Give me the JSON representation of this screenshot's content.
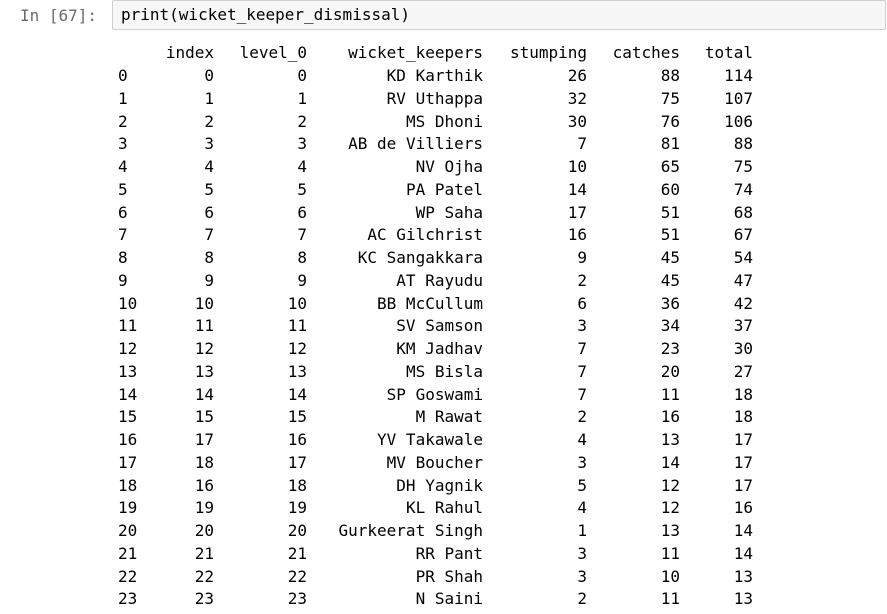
{
  "cell": {
    "prompt": "In [67]:",
    "code": "print(wicket_keeper_dismissal)"
  },
  "table": {
    "columns": [
      "index",
      "level_0",
      "wicket_keepers",
      "stumping",
      "catches",
      "total"
    ],
    "rows": [
      {
        "row_label": "0",
        "index": "0",
        "level_0": "0",
        "wicket_keepers": "KD Karthik",
        "stumping": "26",
        "catches": "88",
        "total": "114"
      },
      {
        "row_label": "1",
        "index": "1",
        "level_0": "1",
        "wicket_keepers": "RV Uthappa",
        "stumping": "32",
        "catches": "75",
        "total": "107"
      },
      {
        "row_label": "2",
        "index": "2",
        "level_0": "2",
        "wicket_keepers": "MS Dhoni",
        "stumping": "30",
        "catches": "76",
        "total": "106"
      },
      {
        "row_label": "3",
        "index": "3",
        "level_0": "3",
        "wicket_keepers": "AB de Villiers",
        "stumping": "7",
        "catches": "81",
        "total": "88"
      },
      {
        "row_label": "4",
        "index": "4",
        "level_0": "4",
        "wicket_keepers": "NV Ojha",
        "stumping": "10",
        "catches": "65",
        "total": "75"
      },
      {
        "row_label": "5",
        "index": "5",
        "level_0": "5",
        "wicket_keepers": "PA Patel",
        "stumping": "14",
        "catches": "60",
        "total": "74"
      },
      {
        "row_label": "6",
        "index": "6",
        "level_0": "6",
        "wicket_keepers": "WP Saha",
        "stumping": "17",
        "catches": "51",
        "total": "68"
      },
      {
        "row_label": "7",
        "index": "7",
        "level_0": "7",
        "wicket_keepers": "AC Gilchrist",
        "stumping": "16",
        "catches": "51",
        "total": "67"
      },
      {
        "row_label": "8",
        "index": "8",
        "level_0": "8",
        "wicket_keepers": "KC Sangakkara",
        "stumping": "9",
        "catches": "45",
        "total": "54"
      },
      {
        "row_label": "9",
        "index": "9",
        "level_0": "9",
        "wicket_keepers": "AT Rayudu",
        "stumping": "2",
        "catches": "45",
        "total": "47"
      },
      {
        "row_label": "10",
        "index": "10",
        "level_0": "10",
        "wicket_keepers": "BB McCullum",
        "stumping": "6",
        "catches": "36",
        "total": "42"
      },
      {
        "row_label": "11",
        "index": "11",
        "level_0": "11",
        "wicket_keepers": "SV Samson",
        "stumping": "3",
        "catches": "34",
        "total": "37"
      },
      {
        "row_label": "12",
        "index": "12",
        "level_0": "12",
        "wicket_keepers": "KM Jadhav",
        "stumping": "7",
        "catches": "23",
        "total": "30"
      },
      {
        "row_label": "13",
        "index": "13",
        "level_0": "13",
        "wicket_keepers": "MS Bisla",
        "stumping": "7",
        "catches": "20",
        "total": "27"
      },
      {
        "row_label": "14",
        "index": "14",
        "level_0": "14",
        "wicket_keepers": "SP Goswami",
        "stumping": "7",
        "catches": "11",
        "total": "18"
      },
      {
        "row_label": "15",
        "index": "15",
        "level_0": "15",
        "wicket_keepers": "M Rawat",
        "stumping": "2",
        "catches": "16",
        "total": "18"
      },
      {
        "row_label": "16",
        "index": "17",
        "level_0": "16",
        "wicket_keepers": "YV Takawale",
        "stumping": "4",
        "catches": "13",
        "total": "17"
      },
      {
        "row_label": "17",
        "index": "18",
        "level_0": "17",
        "wicket_keepers": "MV Boucher",
        "stumping": "3",
        "catches": "14",
        "total": "17"
      },
      {
        "row_label": "18",
        "index": "16",
        "level_0": "18",
        "wicket_keepers": "DH Yagnik",
        "stumping": "5",
        "catches": "12",
        "total": "17"
      },
      {
        "row_label": "19",
        "index": "19",
        "level_0": "19",
        "wicket_keepers": "KL Rahul",
        "stumping": "4",
        "catches": "12",
        "total": "16"
      },
      {
        "row_label": "20",
        "index": "20",
        "level_0": "20",
        "wicket_keepers": "Gurkeerat Singh",
        "stumping": "1",
        "catches": "13",
        "total": "14"
      },
      {
        "row_label": "21",
        "index": "21",
        "level_0": "21",
        "wicket_keepers": "RR Pant",
        "stumping": "3",
        "catches": "11",
        "total": "14"
      },
      {
        "row_label": "22",
        "index": "22",
        "level_0": "22",
        "wicket_keepers": "PR Shah",
        "stumping": "3",
        "catches": "10",
        "total": "13"
      },
      {
        "row_label": "23",
        "index": "23",
        "level_0": "23",
        "wicket_keepers": "N Saini",
        "stumping": "2",
        "catches": "11",
        "total": "13"
      }
    ]
  }
}
